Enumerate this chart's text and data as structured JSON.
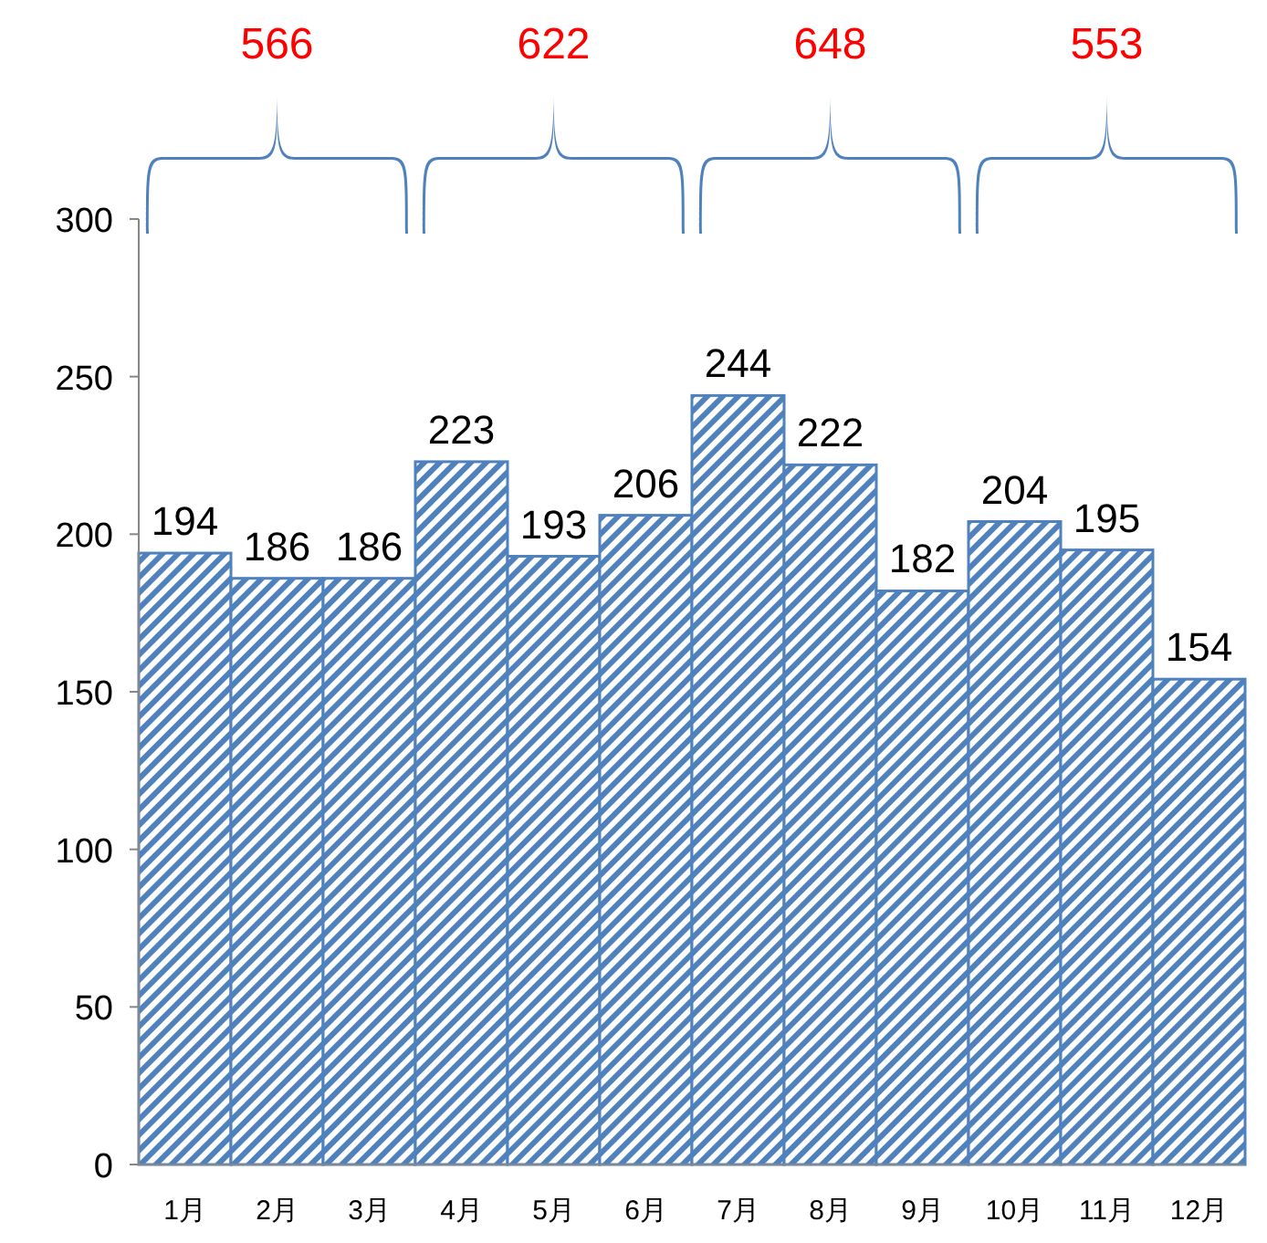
{
  "chart_data": {
    "type": "bar",
    "categories": [
      "1月",
      "2月",
      "3月",
      "4月",
      "5月",
      "6月",
      "7月",
      "8月",
      "9月",
      "10月",
      "11月",
      "12月"
    ],
    "series": [
      {
        "color": "#4f81bd",
        "values": [
          194,
          186,
          186,
          223,
          193,
          206,
          244,
          222,
          182,
          204,
          195,
          154
        ]
      }
    ],
    "ylim": [
      0,
      300
    ],
    "yticks": [
      0,
      50,
      100,
      150,
      200,
      250,
      300
    ],
    "data_labels": true,
    "grid": false,
    "annotations": [
      "566",
      "622",
      "648",
      "553"
    ]
  }
}
